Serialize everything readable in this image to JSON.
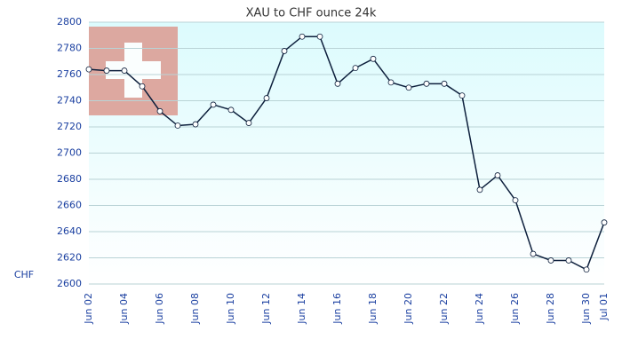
{
  "chart_data": {
    "type": "line",
    "title": "XAU to CHF ounce 24k",
    "y_label": "CHF",
    "categories": [
      "Jun 02",
      null,
      "Jun 04",
      null,
      "Jun 06",
      null,
      "Jun 08",
      null,
      "Jun 10",
      null,
      "Jun 12",
      null,
      "Jun 14",
      null,
      "Jun 16",
      null,
      "Jun 18",
      null,
      "Jun 20",
      null,
      "Jun 22",
      null,
      "Jun 24",
      null,
      "Jun 26",
      null,
      "Jun 28",
      null,
      "Jun 30",
      "Jul 01"
    ],
    "series": [
      {
        "name": "XAU/CHF",
        "color": "#0d1f3c",
        "values": [
          2764,
          2763,
          2763,
          2751,
          2732,
          2721,
          2722,
          2737,
          2733,
          2723,
          2742,
          2778,
          2789,
          2789,
          2753,
          2765,
          2772,
          2754,
          2750,
          2753,
          2753,
          2744,
          2672,
          2683,
          2664,
          2623,
          2618,
          2618,
          2611,
          2647
        ]
      }
    ],
    "ylim": [
      2600,
      2800
    ],
    "yticks": [
      2600,
      2620,
      2640,
      2660,
      2680,
      2700,
      2720,
      2740,
      2760,
      2780,
      2800
    ],
    "grid": true
  }
}
